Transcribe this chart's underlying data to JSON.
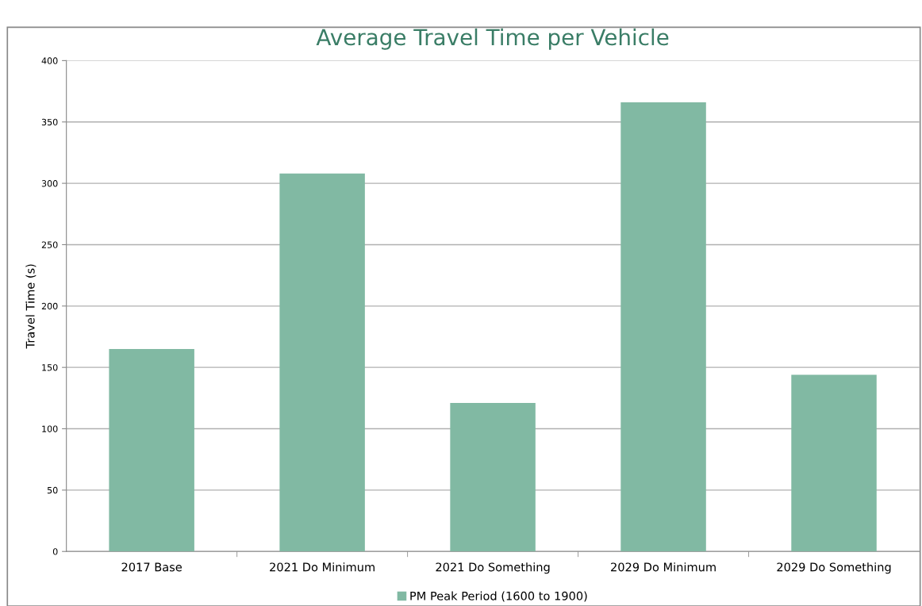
{
  "chart_data": {
    "type": "bar",
    "title": "Average Travel Time per Vehicle",
    "ylabel": "Travel Time (s)",
    "categories": [
      "2017 Base",
      "2021 Do Minimum",
      "2021 Do Something",
      "2029 Do Minimum",
      "2029 Do Something"
    ],
    "series": [
      {
        "name": "PM Peak Period (1600 to 1900)",
        "color": "#81b9a3",
        "values": [
          165,
          308,
          121,
          366,
          144
        ]
      }
    ],
    "ylim": [
      0,
      400
    ],
    "yticks": [
      0,
      50,
      100,
      150,
      200,
      250,
      300,
      350,
      400
    ],
    "grid": "y",
    "legend": "bottom"
  }
}
